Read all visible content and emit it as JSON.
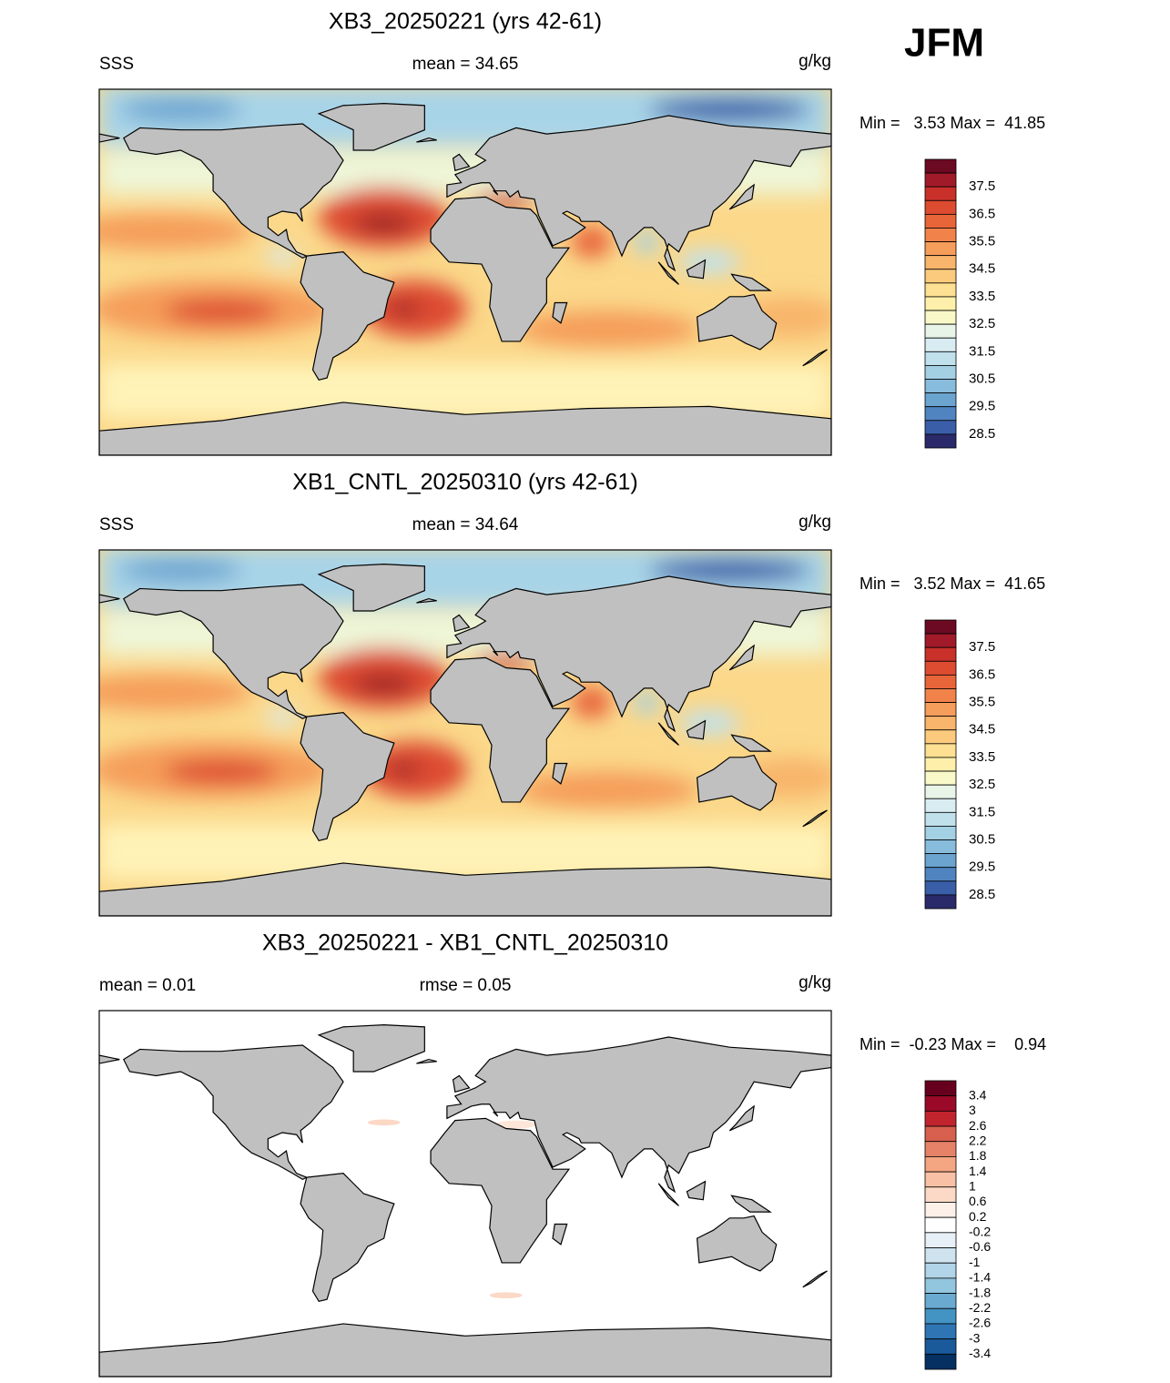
{
  "label": "JFM",
  "panels": [
    {
      "title": "XB3_20250221 (yrs 42-61)",
      "left": "SSS",
      "center": "mean =  34.65",
      "right": "g/kg",
      "min_max": "Min =   3.53 Max =  41.85",
      "ocean": "sss",
      "colorbar": {
        "labels": [
          37.5,
          36.5,
          35.5,
          34.5,
          33.5,
          32.5,
          31.5,
          30.5,
          29.5,
          28.5
        ],
        "colors": [
          "#6b0a22",
          "#a11a2a",
          "#c9302a",
          "#dd4b30",
          "#e8653a",
          "#f0824a",
          "#f59d5a",
          "#f8b56b",
          "#fbca7d",
          "#fde091",
          "#fef0aa",
          "#f8f8c8",
          "#e8f4e8",
          "#d8ecf2",
          "#c0e0ec",
          "#a4d0e4",
          "#88bcdc",
          "#6ca4d0",
          "#5084c0",
          "#3a5ea8",
          "#2a2a6a"
        ]
      }
    },
    {
      "title": "XB1_CNTL_20250310 (yrs 42-61)",
      "left": "SSS",
      "center": "mean =  34.64",
      "right": "g/kg",
      "min_max": "Min =   3.52 Max =  41.65",
      "ocean": "sss",
      "colorbar": {
        "labels": [
          37.5,
          36.5,
          35.5,
          34.5,
          33.5,
          32.5,
          31.5,
          30.5,
          29.5,
          28.5
        ],
        "colors": [
          "#6b0a22",
          "#a11a2a",
          "#c9302a",
          "#dd4b30",
          "#e8653a",
          "#f0824a",
          "#f59d5a",
          "#f8b56b",
          "#fbca7d",
          "#fde091",
          "#fef0aa",
          "#f8f8c8",
          "#e8f4e8",
          "#d8ecf2",
          "#c0e0ec",
          "#a4d0e4",
          "#88bcdc",
          "#6ca4d0",
          "#5084c0",
          "#3a5ea8",
          "#2a2a6a"
        ]
      }
    },
    {
      "title": "XB3_20250221 - XB1_CNTL_20250310",
      "left": "mean =   0.01",
      "center": "rmse =   0.05",
      "right": "g/kg",
      "min_max": "Min =  -0.23 Max =    0.94",
      "ocean": "diff",
      "colorbar": {
        "labels": [
          3.4,
          3,
          2.6,
          2.2,
          1.8,
          1.4,
          1,
          0.6,
          0.2,
          -0.2,
          -0.6,
          -1,
          -1.4,
          -1.8,
          -2.2,
          -2.6,
          -3,
          -3.4
        ],
        "colors": [
          "#67001f",
          "#9a0a28",
          "#c2242e",
          "#d6604d",
          "#e58268",
          "#f4a582",
          "#f8c0a4",
          "#fbd9c6",
          "#fdf0e8",
          "#ffffff",
          "#e6f0f6",
          "#cfe3ef",
          "#b2d4e8",
          "#92c5de",
          "#6aa9d0",
          "#4393c3",
          "#2f75b3",
          "#1b5a9a",
          "#053061"
        ]
      }
    }
  ]
}
